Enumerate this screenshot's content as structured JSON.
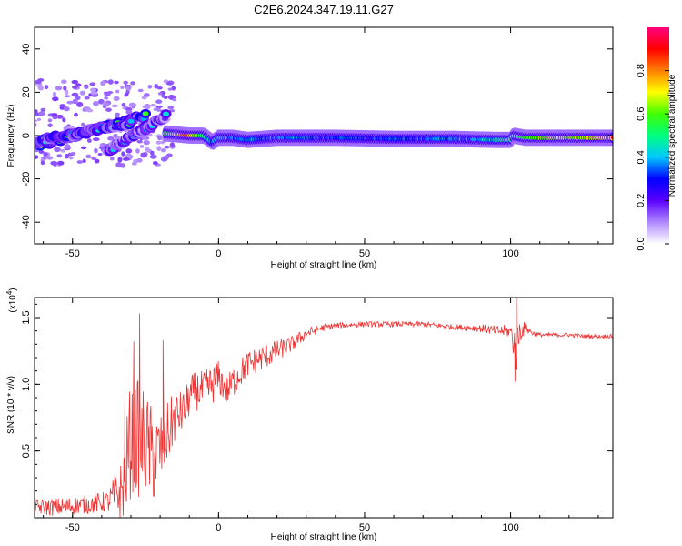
{
  "title": "C2E6.2024.347.19.11.G27",
  "chart_data": [
    {
      "type": "heatmap",
      "title": "C2E6.2024.347.19.11.G27",
      "xlabel": "Height of straight line (km)",
      "ylabel": "Frequency (Hz)",
      "xlim": [
        -63,
        135
      ],
      "ylim": [
        -50,
        50
      ],
      "x_ticks": [
        "-50",
        "0",
        "50",
        "100"
      ],
      "x_tick_values": [
        -50,
        0,
        50,
        100
      ],
      "y_ticks": [
        "-40",
        "-20",
        "0",
        "20",
        "40"
      ],
      "y_tick_values": [
        -40,
        -20,
        0,
        20,
        40
      ],
      "colorbar": {
        "label": "Normalized spectral amplitude",
        "range": [
          0,
          1
        ],
        "ticks": [
          "0.0",
          "0.2",
          "0.4",
          "0.6",
          "0.8"
        ],
        "tick_values": [
          0,
          0.2,
          0.4,
          0.6,
          0.8
        ],
        "colors": [
          "#ffffff",
          "#b088ff",
          "#5a00ff",
          "#0000ff",
          "#00c8ff",
          "#00ff80",
          "#40ff00",
          "#ffff00",
          "#ff8000",
          "#ff0000",
          "#ff0080"
        ]
      },
      "main_band": {
        "x": [
          -18,
          -10,
          -5,
          -2,
          0,
          5,
          10,
          20,
          40,
          60,
          80,
          95,
          100,
          101,
          105,
          120,
          135
        ],
        "center_hz": [
          1,
          0,
          0,
          -3,
          -1,
          -1,
          -2,
          -1,
          -1,
          -1.5,
          -1.5,
          -2,
          -2,
          0,
          -1,
          -1,
          -1
        ],
        "amplitude": [
          0.7,
          0.95,
          0.6,
          0.5,
          0.55,
          0.5,
          0.5,
          0.5,
          0.45,
          0.45,
          0.5,
          0.55,
          0.6,
          0.7,
          0.75,
          0.8,
          0.85
        ]
      },
      "drift_tracks": [
        {
          "x": [
            -63,
            -25
          ],
          "hz": [
            -5,
            9
          ],
          "amplitude": 0.5
        },
        {
          "x": [
            -63,
            -30
          ],
          "hz": [
            -3,
            6
          ],
          "amplitude": 0.45
        },
        {
          "x": [
            -38,
            -18
          ],
          "hz": [
            -7,
            9
          ],
          "amplitude": 0.35
        }
      ]
    },
    {
      "type": "line",
      "xlabel": "Height of straight line (km)",
      "ylabel": "SNR (10 * v/v)",
      "y_multiplier": "(x10",
      "y_multiplier_exp": "4",
      "y_multiplier_close": ")",
      "xlim": [
        -63,
        135
      ],
      "ylim": [
        0,
        1.65
      ],
      "x_ticks": [
        "-50",
        "0",
        "50",
        "100"
      ],
      "x_tick_values": [
        -50,
        0,
        50,
        100
      ],
      "y_ticks": [
        "0.5",
        "1.0",
        "1.5"
      ],
      "y_tick_values": [
        0.5,
        1.0,
        1.5
      ],
      "line_color": "#ee3333",
      "series": [
        {
          "x": [
            -63,
            -55,
            -45,
            -38,
            -33,
            -30,
            -28,
            -25,
            -22,
            -20,
            -18,
            -15,
            -12,
            -10,
            -8,
            -5,
            -2,
            0,
            3,
            6,
            10,
            15,
            20,
            25,
            30,
            35,
            40,
            50,
            60,
            70,
            80,
            90,
            95,
            100,
            102,
            103,
            105,
            108,
            110,
            115,
            120,
            125,
            130,
            135
          ],
          "y": [
            0.08,
            0.08,
            0.1,
            0.12,
            0.2,
            0.6,
            0.6,
            0.55,
            0.45,
            0.5,
            0.6,
            0.75,
            0.8,
            0.9,
            0.95,
            0.95,
            1.0,
            1.05,
            0.95,
            1.05,
            1.15,
            1.2,
            1.25,
            1.3,
            1.38,
            1.42,
            1.44,
            1.45,
            1.45,
            1.45,
            1.43,
            1.42,
            1.4,
            1.4,
            1.25,
            1.4,
            1.42,
            1.38,
            1.37,
            1.37,
            1.37,
            1.36,
            1.36,
            1.36
          ],
          "noise": [
            0.06,
            0.07,
            0.07,
            0.08,
            0.25,
            0.45,
            0.45,
            0.4,
            0.35,
            0.3,
            0.25,
            0.2,
            0.15,
            0.15,
            0.15,
            0.15,
            0.15,
            0.13,
            0.12,
            0.12,
            0.1,
            0.1,
            0.08,
            0.06,
            0.04,
            0.03,
            0.02,
            0.02,
            0.02,
            0.02,
            0.02,
            0.03,
            0.04,
            0.05,
            0.2,
            0.1,
            0.04,
            0.02,
            0.015,
            0.015,
            0.015,
            0.015,
            0.015,
            0.015
          ],
          "spikes": [
            {
              "x": -27,
              "y": 1.53
            },
            {
              "x": -29,
              "y": 1.32
            },
            {
              "x": -32,
              "y": 1.25
            },
            {
              "x": -19,
              "y": 1.33
            },
            {
              "x": 102,
              "y": 1.65
            },
            {
              "x": 101.5,
              "y": 1.02
            }
          ]
        }
      ]
    }
  ]
}
